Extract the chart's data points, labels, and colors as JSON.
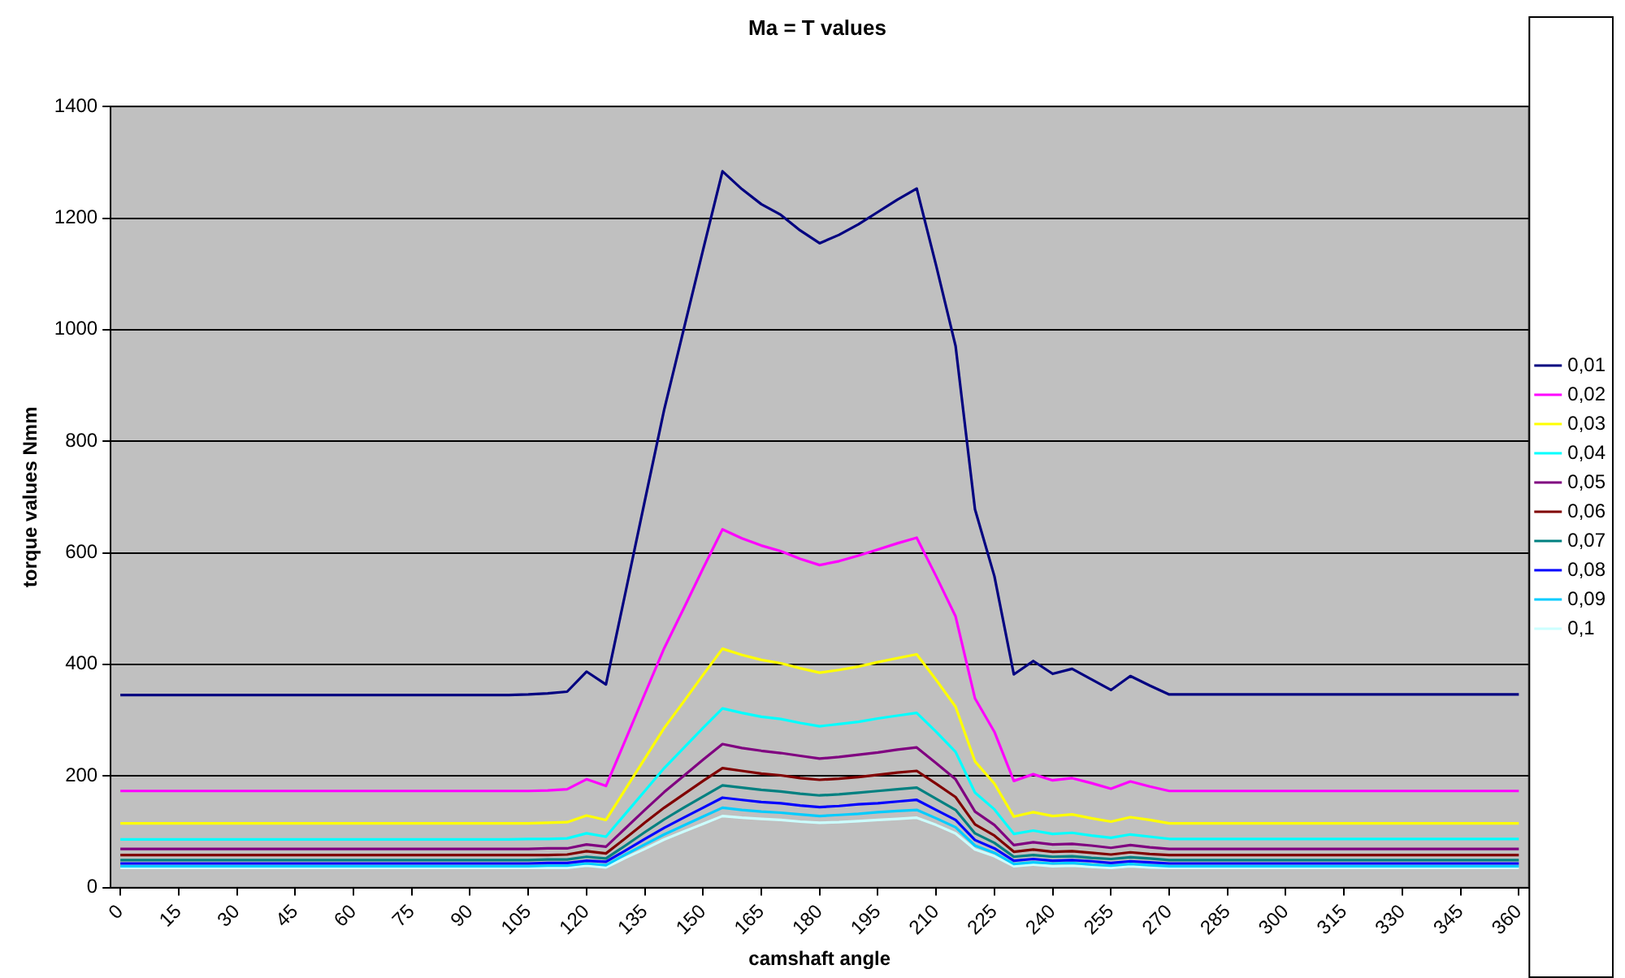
{
  "chart_data": {
    "type": "line",
    "title": "Ma = T values",
    "xlabel": "camshaft angle",
    "ylabel": "torque values Nmm",
    "x": [
      0,
      95,
      100,
      105,
      110,
      115,
      120,
      125,
      130,
      135,
      140,
      145,
      150,
      155,
      160,
      165,
      170,
      175,
      180,
      185,
      190,
      195,
      200,
      205,
      210,
      215,
      220,
      225,
      230,
      235,
      240,
      245,
      250,
      255,
      260,
      265,
      270,
      360
    ],
    "xlim": [
      -2.5,
      362.5
    ],
    "xticks": [
      0,
      15,
      30,
      45,
      60,
      75,
      90,
      105,
      120,
      135,
      150,
      165,
      180,
      195,
      210,
      225,
      240,
      255,
      270,
      285,
      300,
      315,
      330,
      345,
      360
    ],
    "ylim": [
      0,
      1400
    ],
    "yticks": [
      0,
      200,
      400,
      600,
      800,
      1000,
      1200,
      1400
    ],
    "grid": "y",
    "legend": "right",
    "marker": "none",
    "line_style": "solid",
    "series": [
      {
        "name": "0,01",
        "color": "#000080",
        "values": [
          345,
          345,
          345,
          346,
          348,
          351,
          387,
          364,
          528,
          693,
          857,
          1000,
          1143,
          1284,
          1252,
          1225,
          1206,
          1178,
          1155,
          1170,
          1189,
          1211,
          1233,
          1253,
          1115,
          971,
          678,
          558,
          382,
          406,
          383,
          392,
          373,
          354,
          379,
          362,
          346,
          346
        ]
      },
      {
        "name": "0,02",
        "color": "#ff00ff",
        "values": [
          173,
          173,
          173,
          173,
          174,
          176,
          194,
          182,
          264,
          347,
          429,
          500,
          572,
          642,
          626,
          613,
          603,
          589,
          578,
          585,
          595,
          606,
          617,
          627,
          558,
          486,
          339,
          279,
          191,
          203,
          192,
          196,
          187,
          177,
          190,
          181,
          173,
          173
        ]
      },
      {
        "name": "0,03",
        "color": "#ffff00",
        "values": [
          115,
          115,
          115,
          115,
          116,
          117,
          129,
          121,
          176,
          231,
          286,
          333,
          381,
          428,
          417,
          408,
          402,
          393,
          385,
          390,
          396,
          404,
          411,
          418,
          372,
          324,
          226,
          186,
          127,
          135,
          128,
          131,
          124,
          118,
          126,
          121,
          115,
          115
        ]
      },
      {
        "name": "0,04",
        "color": "#00ffff",
        "values": [
          86,
          86,
          86,
          87,
          87,
          88,
          97,
          91,
          132,
          173,
          214,
          250,
          286,
          321,
          313,
          306,
          302,
          295,
          289,
          293,
          297,
          303,
          308,
          313,
          279,
          243,
          170,
          140,
          96,
          102,
          96,
          98,
          93,
          89,
          95,
          91,
          87,
          87
        ]
      },
      {
        "name": "0,05",
        "color": "#800080",
        "values": [
          69,
          69,
          69,
          69,
          70,
          70,
          77,
          73,
          106,
          139,
          171,
          200,
          229,
          257,
          250,
          245,
          241,
          236,
          231,
          234,
          238,
          242,
          247,
          251,
          223,
          194,
          136,
          112,
          76,
          81,
          77,
          78,
          75,
          71,
          76,
          72,
          69,
          69
        ]
      },
      {
        "name": "0,06",
        "color": "#800000",
        "values": [
          58,
          58,
          58,
          58,
          58,
          59,
          65,
          61,
          88,
          116,
          143,
          167,
          191,
          214,
          209,
          204,
          201,
          196,
          193,
          195,
          198,
          202,
          206,
          209,
          186,
          162,
          113,
          93,
          64,
          68,
          64,
          65,
          62,
          59,
          63,
          60,
          58,
          58
        ]
      },
      {
        "name": "0,07",
        "color": "#008080",
        "values": [
          49,
          49,
          49,
          49,
          50,
          50,
          55,
          52,
          75,
          99,
          122,
          143,
          163,
          183,
          179,
          175,
          172,
          168,
          165,
          167,
          170,
          173,
          176,
          179,
          159,
          139,
          97,
          80,
          55,
          58,
          55,
          56,
          53,
          51,
          54,
          52,
          49,
          49
        ]
      },
      {
        "name": "0,08",
        "color": "#0000ff",
        "values": [
          43,
          43,
          43,
          43,
          44,
          44,
          48,
          46,
          66,
          87,
          107,
          125,
          143,
          161,
          157,
          153,
          151,
          147,
          144,
          146,
          149,
          151,
          154,
          157,
          139,
          121,
          85,
          70,
          48,
          51,
          48,
          49,
          47,
          44,
          47,
          45,
          43,
          43
        ]
      },
      {
        "name": "0,09",
        "color": "#00ccff",
        "values": [
          38,
          38,
          38,
          38,
          39,
          39,
          43,
          40,
          59,
          77,
          95,
          111,
          127,
          143,
          139,
          136,
          134,
          131,
          128,
          130,
          132,
          135,
          137,
          139,
          124,
          108,
          75,
          62,
          42,
          45,
          43,
          44,
          41,
          39,
          42,
          40,
          38,
          38
        ]
      },
      {
        "name": "0,1",
        "color": "#ccffff",
        "values": [
          35,
          35,
          35,
          35,
          35,
          35,
          39,
          36,
          53,
          69,
          86,
          100,
          114,
          128,
          125,
          123,
          121,
          118,
          116,
          117,
          119,
          121,
          123,
          125,
          112,
          97,
          68,
          56,
          38,
          41,
          38,
          39,
          37,
          35,
          38,
          36,
          35,
          35
        ]
      }
    ]
  }
}
